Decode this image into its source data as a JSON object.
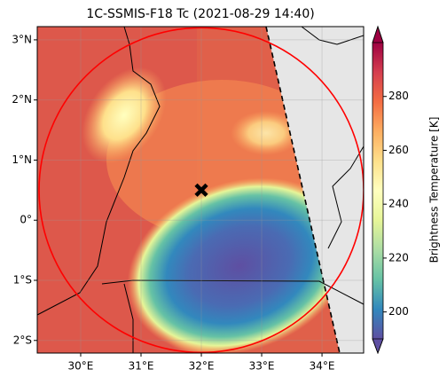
{
  "map": {
    "title": "1C-SSMIS-F18 Tc (2021-08-29 14:40)",
    "xlim": [
      29.28,
      34.69
    ],
    "ylim": [
      -2.21,
      3.22
    ],
    "xticks": [
      {
        "value": 30,
        "label": "30°E"
      },
      {
        "value": 31,
        "label": "31°E"
      },
      {
        "value": 32,
        "label": "32°E"
      },
      {
        "value": 33,
        "label": "33°E"
      },
      {
        "value": 34,
        "label": "34°E"
      }
    ],
    "yticks": [
      {
        "value": -2,
        "label": "2°S"
      },
      {
        "value": -1,
        "label": "1°S"
      },
      {
        "value": 0,
        "label": "0°"
      },
      {
        "value": 1,
        "label": "1°N"
      },
      {
        "value": 2,
        "label": "2°N"
      },
      {
        "value": 3,
        "label": "3°N"
      }
    ],
    "marker": {
      "lon": 32,
      "lat": 0.5
    },
    "circle_radius_deg": 2.69,
    "colorbar": {
      "label": "Brightness Temperature [K]",
      "lim": [
        190,
        300
      ],
      "ticks": [
        200,
        220,
        240,
        260,
        280
      ],
      "colors": [
        "#5e4fa2",
        "#3288bd",
        "#66c2a5",
        "#abdda4",
        "#e6f598",
        "#ffffbf",
        "#fee08b",
        "#fdae61",
        "#f46d43",
        "#d53e4f",
        "#9e0142"
      ]
    }
  }
}
